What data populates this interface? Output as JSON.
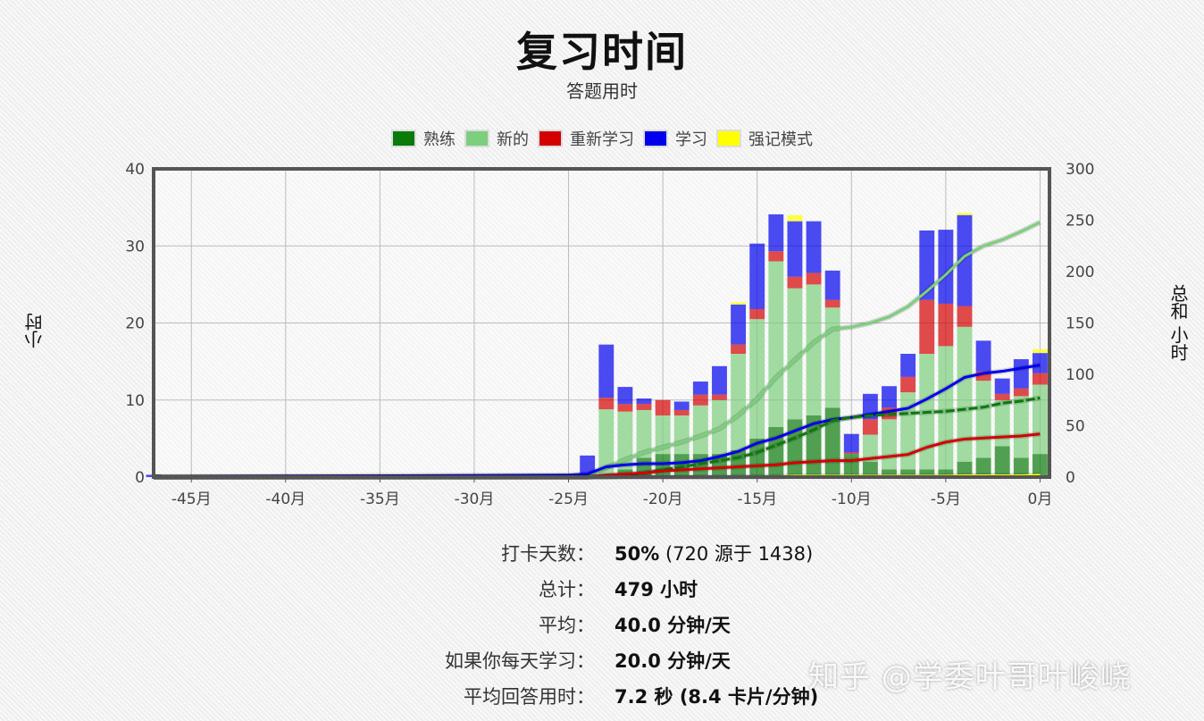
{
  "title": "复习时间",
  "subtitle": "答题用时",
  "legend": [
    {
      "label": "熟练",
      "color": "#0a7a0a"
    },
    {
      "label": "新的",
      "color": "#7ccf7c"
    },
    {
      "label": "重新学习",
      "color": "#d40000"
    },
    {
      "label": "学习",
      "color": "#0000ee"
    },
    {
      "label": "强记模式",
      "color": "#ffff00"
    }
  ],
  "axes": {
    "left_label": "小时",
    "right_label": "总和 小时"
  },
  "chart_data": {
    "type": "bar",
    "x_unit": "月",
    "x_ticks": [
      -45,
      -40,
      -35,
      -30,
      -25,
      -20,
      -15,
      -10,
      -5,
      0
    ],
    "x_tick_labels": [
      "-45月",
      "-40月",
      "-35月",
      "-30月",
      "-25月",
      "-20月",
      "-15月",
      "-10月",
      "-5月",
      "0月"
    ],
    "xlim": [
      -47,
      0.5
    ],
    "ylim_left": [
      0,
      40
    ],
    "y_ticks_left": [
      0,
      10,
      20,
      30,
      40
    ],
    "ylim_right": [
      0,
      300
    ],
    "y_ticks_right": [
      0,
      50,
      100,
      150,
      200,
      250,
      300
    ],
    "grid": true,
    "legend_position": "top",
    "bars": {
      "x": [
        -47,
        -24,
        -23,
        -22,
        -21,
        -20,
        -19,
        -18,
        -17,
        -16,
        -15,
        -14,
        -13,
        -12,
        -11,
        -10,
        -9,
        -8,
        -7,
        -6,
        -5,
        -4,
        -3,
        -2,
        -1,
        0
      ],
      "series": [
        {
          "name": "熟练",
          "color": "#0a7a0a",
          "values": [
            0,
            0,
            0,
            1,
            2.5,
            3,
            3,
            3,
            3,
            3.5,
            5,
            6.5,
            7.5,
            8,
            9,
            3,
            2,
            1,
            1,
            1,
            1,
            2,
            2.5,
            4,
            2.5,
            3
          ]
        },
        {
          "name": "新的",
          "color": "#7ccf7c",
          "values": [
            0,
            0,
            8.8,
            7.5,
            6.2,
            5,
            5,
            6.3,
            7,
            12.5,
            15.5,
            21.5,
            17,
            17,
            13,
            0,
            3.5,
            6.5,
            10,
            15,
            16,
            17.5,
            10,
            6,
            8,
            9
          ]
        },
        {
          "name": "重新学习",
          "color": "#d40000",
          "values": [
            0,
            0,
            1.5,
            1,
            0.8,
            2,
            0.7,
            1.4,
            0.7,
            1.2,
            1.3,
            1.3,
            1.5,
            1.5,
            1,
            0.2,
            2,
            1.5,
            2,
            7,
            5.5,
            2.7,
            1.2,
            0.8,
            1,
            1.5
          ]
        },
        {
          "name": "学习",
          "color": "#0000ee",
          "values": [
            0.3,
            2.8,
            6.9,
            2.2,
            0.7,
            0,
            1.1,
            1.7,
            3.7,
            5.2,
            8.5,
            4.8,
            7.2,
            6.7,
            3.8,
            2.4,
            3.3,
            2.8,
            3,
            9,
            9.6,
            11.8,
            4,
            2,
            3.8,
            2.6
          ]
        },
        {
          "name": "强记模式",
          "color": "#ffff00",
          "values": [
            0,
            0,
            0,
            0,
            0,
            0,
            0,
            0,
            0,
            0.3,
            0,
            0,
            0.8,
            0,
            0,
            0,
            0,
            0,
            0,
            0,
            0,
            0.3,
            0,
            0,
            0,
            0.5
          ]
        }
      ]
    },
    "cumulative_lines": {
      "x": [
        -47,
        -25,
        -24,
        -23,
        -22,
        -21,
        -20,
        -19,
        -18,
        -17,
        -16,
        -15,
        -14,
        -13,
        -12,
        -11,
        -10,
        -9,
        -8,
        -7,
        -6,
        -5,
        -4,
        -3,
        -2,
        -1,
        0
      ],
      "series": [
        {
          "name": "新的",
          "color": "#7ccf7c",
          "values": [
            0,
            0,
            0,
            9,
            17,
            24,
            29,
            34,
            40,
            47,
            60,
            76,
            97,
            114,
            131,
            144,
            146,
            150,
            156,
            166,
            181,
            197,
            215,
            225,
            231,
            239,
            248
          ]
        },
        {
          "name": "学习",
          "color": "#0000ee",
          "values": [
            0.3,
            2,
            3,
            10,
            12,
            13,
            13,
            14,
            16,
            20,
            25,
            33,
            38,
            45,
            52,
            56,
            58,
            61,
            64,
            67,
            76,
            86,
            97,
            101,
            103,
            106,
            109
          ]
        },
        {
          "name": "熟练",
          "color": "#0a7a0a",
          "values": [
            0,
            0,
            0,
            0,
            1,
            4,
            7,
            10,
            13,
            16,
            19,
            24,
            31,
            38,
            46,
            55,
            58,
            60,
            61,
            62,
            63,
            64,
            66,
            68,
            72,
            74,
            77
          ]
        },
        {
          "name": "重新学习",
          "color": "#d40000",
          "values": [
            0,
            0,
            0,
            2,
            3,
            4,
            6,
            7,
            8,
            9,
            10,
            11,
            12,
            14,
            15,
            16,
            16,
            18,
            20,
            22,
            29,
            34,
            37,
            38,
            39,
            40,
            42
          ]
        },
        {
          "name": "强记模式",
          "color": "#ffff00",
          "values": [
            0,
            0,
            0,
            0,
            0,
            0,
            0,
            0,
            0,
            0,
            0.3,
            0.3,
            0.3,
            1,
            1,
            1,
            1,
            1,
            1,
            1,
            1,
            1,
            1.3,
            1.3,
            1.3,
            1.3,
            1.8
          ]
        }
      ]
    }
  },
  "stats": [
    {
      "label": "打卡天数：",
      "value_bold": "50%",
      "value_rest": " (720 源于 1438)"
    },
    {
      "label": "总计：",
      "value_bold": "479 小时",
      "value_rest": ""
    },
    {
      "label": "平均：",
      "value_bold": "40.0 分钟/天",
      "value_rest": ""
    },
    {
      "label": "如果你每天学习：",
      "value_bold": "20.0 分钟/天",
      "value_rest": ""
    },
    {
      "label": "平均回答用时：",
      "value_bold": "7.2 秒 (8.4 卡片/分钟)",
      "value_rest": ""
    }
  ],
  "watermark": "知乎 @学委叶哥叶峻峣"
}
